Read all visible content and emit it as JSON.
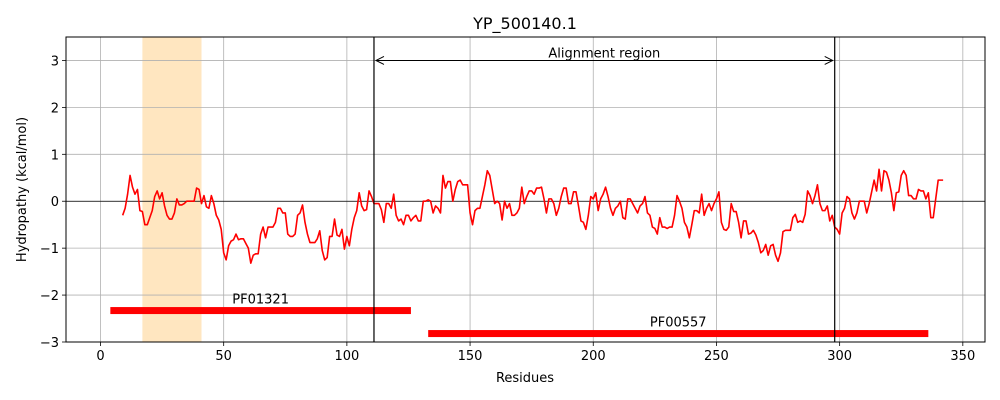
{
  "chart_data": {
    "type": "line",
    "title": "YP_500140.1",
    "xlabel": "Residues",
    "ylabel": "Hydropathy (kcal/mol)",
    "xlim": [
      -14,
      359
    ],
    "ylim": [
      -3,
      3.5
    ],
    "xticks": [
      0,
      50,
      100,
      150,
      200,
      250,
      300,
      350
    ],
    "yticks": [
      -3,
      -2,
      -1,
      0,
      1,
      2,
      3
    ],
    "ytick_labels": [
      "−3",
      "−2",
      "−1",
      "0",
      "1",
      "2",
      "3"
    ],
    "grid": true,
    "line_color": "#ff0000",
    "highlight_color": "#ffe6c0",
    "highlight_region": [
      17,
      41
    ],
    "alignment_region": {
      "label": "Alignment region",
      "start": 111,
      "end": 298,
      "y": 3.0
    },
    "domains": [
      {
        "name": "PF01321",
        "start": 4,
        "end": 126,
        "y": -2.33
      },
      {
        "name": "PF00557",
        "start": 133,
        "end": 336,
        "y": -2.82
      }
    ],
    "series": [
      {
        "x": [
          9,
          10,
          11,
          12,
          13,
          14,
          15,
          16,
          17,
          18,
          19,
          20,
          21,
          22,
          23,
          24,
          25,
          26,
          27,
          28,
          29,
          30,
          31,
          32,
          33,
          34,
          35,
          36,
          37,
          38,
          39,
          40,
          41,
          42,
          43,
          44,
          45,
          46,
          47,
          48,
          49,
          50,
          51,
          52,
          53,
          54,
          55,
          56,
          57,
          58,
          59,
          60,
          61,
          62,
          63,
          64,
          65,
          66,
          67,
          68,
          69,
          70,
          71,
          72,
          73,
          74,
          75,
          76,
          77,
          78,
          79,
          80,
          81,
          82,
          83,
          84,
          85,
          86,
          87,
          88,
          89,
          90,
          91,
          92,
          93,
          94,
          95,
          96,
          97,
          98,
          99,
          100,
          101,
          102,
          103,
          104,
          105,
          106,
          107,
          108,
          109,
          110,
          111,
          112,
          113,
          114,
          115,
          116,
          117,
          118,
          119,
          120,
          121,
          122,
          123,
          124,
          125,
          126,
          127,
          128,
          129,
          130,
          131,
          132,
          133,
          134,
          135,
          136,
          137,
          138,
          139,
          140,
          141,
          142,
          143,
          144,
          145,
          146,
          147,
          148,
          149,
          150,
          151,
          152,
          153,
          154,
          155,
          156,
          157,
          158,
          159,
          160,
          161,
          162,
          163,
          164,
          165,
          166,
          167,
          168,
          169,
          170,
          171,
          172,
          173,
          174,
          175,
          176,
          177,
          178,
          179,
          180,
          181,
          182,
          183,
          184,
          185,
          186,
          187,
          188,
          189,
          190,
          191,
          192,
          193,
          194,
          195,
          196,
          197,
          198,
          199,
          200,
          201,
          202,
          203,
          204,
          205,
          206,
          207,
          208,
          209,
          210,
          211,
          212,
          213,
          214,
          215,
          216,
          217,
          218,
          219,
          220,
          221,
          222,
          223,
          224,
          225,
          226,
          227,
          228,
          229,
          230,
          231,
          232,
          233,
          234,
          235,
          236,
          237,
          238,
          239,
          240,
          241,
          242,
          243,
          244,
          245,
          246,
          247,
          248,
          249,
          250,
          251,
          252,
          253,
          254,
          255,
          256,
          257,
          258,
          259,
          260,
          261,
          262,
          263,
          264,
          265,
          266,
          267,
          268,
          269,
          270,
          271,
          272,
          273,
          274,
          275,
          276,
          277,
          278,
          279,
          280,
          281,
          282,
          283,
          284,
          285,
          286,
          287,
          288,
          289,
          290,
          291,
          292,
          293,
          294,
          295,
          296,
          297,
          298,
          299,
          300,
          301,
          302,
          303,
          304,
          305,
          306,
          307,
          308,
          309,
          310,
          311,
          312,
          313,
          314,
          315,
          316,
          317,
          318,
          319,
          320,
          321,
          322,
          323,
          324,
          325,
          326,
          327,
          328,
          329,
          330,
          331,
          332,
          333,
          334,
          335,
          336,
          337,
          338,
          339,
          340,
          341,
          342
        ],
        "values": [
          -0.3,
          -0.15,
          0.15,
          0.55,
          0.3,
          0.15,
          0.25,
          -0.2,
          -0.22,
          -0.5,
          -0.5,
          -0.35,
          -0.2,
          0.1,
          0.22,
          0.05,
          0.18,
          -0.1,
          -0.3,
          -0.38,
          -0.38,
          -0.25,
          0.05,
          -0.08,
          -0.08,
          -0.05,
          0.0,
          0.0,
          0.0,
          0.0,
          0.28,
          0.25,
          -0.05,
          0.12,
          -0.12,
          -0.15,
          0.12,
          -0.05,
          -0.3,
          -0.4,
          -0.6,
          -1.1,
          -1.25,
          -0.95,
          -0.85,
          -0.82,
          -0.7,
          -0.82,
          -0.8,
          -0.8,
          -0.9,
          -1.0,
          -1.32,
          -1.15,
          -1.12,
          -1.12,
          -0.7,
          -0.55,
          -0.78,
          -0.55,
          -0.55,
          -0.55,
          -0.45,
          -0.15,
          -0.15,
          -0.25,
          -0.25,
          -0.7,
          -0.75,
          -0.75,
          -0.7,
          -0.3,
          -0.25,
          -0.08,
          -0.45,
          -0.7,
          -0.88,
          -0.88,
          -0.88,
          -0.8,
          -0.63,
          -1.05,
          -1.25,
          -1.2,
          -0.75,
          -0.75,
          -0.38,
          -0.72,
          -0.75,
          -0.6,
          -1.02,
          -0.75,
          -0.95,
          -0.6,
          -0.35,
          -0.2,
          0.18,
          -0.1,
          -0.2,
          -0.18,
          0.22,
          0.1,
          -0.05,
          -0.05,
          -0.05,
          -0.18,
          -0.45,
          -0.05,
          -0.05,
          -0.15,
          0.15,
          -0.3,
          -0.42,
          -0.38,
          -0.5,
          -0.3,
          -0.3,
          -0.42,
          -0.35,
          -0.3,
          -0.42,
          -0.42,
          0.0,
          0.0,
          0.03,
          0.0,
          -0.25,
          -0.1,
          -0.15,
          -0.25,
          0.55,
          0.28,
          0.42,
          0.42,
          0.0,
          0.25,
          0.42,
          0.45,
          0.35,
          0.35,
          0.35,
          -0.25,
          -0.5,
          -0.2,
          -0.15,
          -0.15,
          0.1,
          0.35,
          0.65,
          0.55,
          0.25,
          -0.05,
          0.0,
          -0.05,
          -0.4,
          0.0,
          -0.15,
          -0.05,
          -0.3,
          -0.3,
          -0.25,
          -0.15,
          0.3,
          -0.05,
          0.1,
          0.22,
          0.22,
          0.15,
          0.28,
          0.28,
          0.3,
          0.05,
          -0.25,
          0.05,
          0.05,
          -0.05,
          -0.3,
          -0.15,
          0.1,
          0.28,
          0.28,
          -0.05,
          -0.05,
          0.2,
          0.2,
          -0.1,
          -0.42,
          -0.45,
          -0.6,
          -0.3,
          0.1,
          0.05,
          0.18,
          -0.2,
          0.05,
          0.15,
          0.3,
          0.1,
          -0.15,
          -0.3,
          -0.15,
          -0.1,
          0.0,
          -0.35,
          -0.38,
          0.05,
          0.05,
          -0.05,
          -0.15,
          -0.25,
          -0.1,
          -0.05,
          0.1,
          -0.25,
          -0.3,
          -0.55,
          -0.58,
          -0.7,
          -0.35,
          -0.55,
          -0.55,
          -0.58,
          -0.55,
          -0.55,
          -0.3,
          0.12,
          0.0,
          -0.15,
          -0.45,
          -0.55,
          -0.78,
          -0.5,
          -0.2,
          -0.2,
          -0.25,
          0.15,
          -0.3,
          -0.15,
          -0.05,
          -0.2,
          -0.05,
          0.05,
          0.2,
          -0.45,
          -0.6,
          -0.62,
          -0.55,
          -0.05,
          -0.22,
          -0.22,
          -0.45,
          -0.78,
          -0.42,
          -0.42,
          -0.7,
          -0.68,
          -0.62,
          -0.72,
          -0.88,
          -1.1,
          -1.05,
          -0.92,
          -1.15,
          -0.95,
          -0.92,
          -1.15,
          -1.28,
          -1.1,
          -0.65,
          -0.62,
          -0.62,
          -0.62,
          -0.35,
          -0.28,
          -0.45,
          -0.42,
          -0.45,
          -0.28,
          0.22,
          0.12,
          -0.05,
          0.12,
          0.35,
          -0.05,
          -0.2,
          -0.2,
          -0.1,
          -0.42,
          -0.3,
          -0.55,
          -0.6,
          -0.7,
          -0.25,
          -0.15,
          0.1,
          0.05,
          -0.25,
          -0.38,
          -0.25,
          0.0,
          0.0,
          0.0,
          -0.25,
          -0.05,
          0.2,
          0.45,
          0.22,
          0.68,
          0.22,
          0.65,
          0.62,
          0.45,
          0.18,
          -0.2,
          0.18,
          0.2,
          0.55,
          0.65,
          0.55,
          0.12,
          0.12,
          0.05,
          0.05,
          0.25,
          0.22,
          0.22,
          0.05,
          0.18,
          -0.35,
          -0.35,
          0.05,
          0.45,
          0.45,
          0.45
        ]
      }
    ]
  }
}
